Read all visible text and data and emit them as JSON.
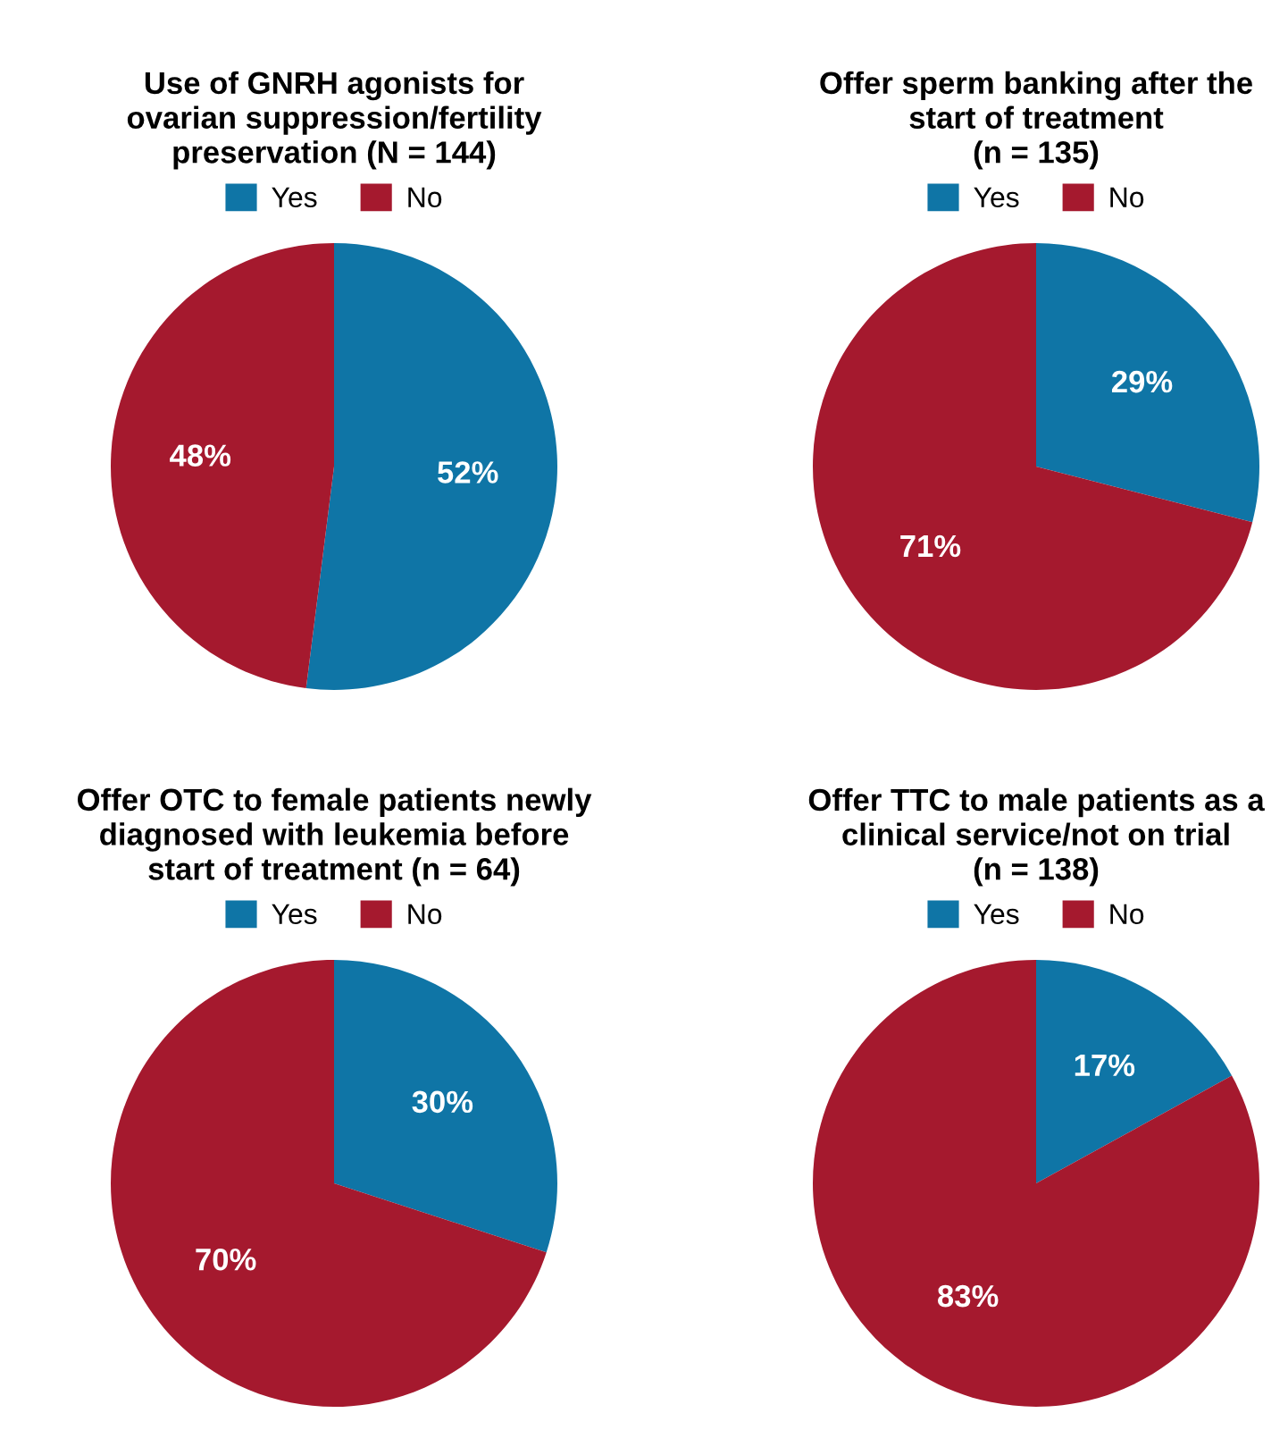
{
  "chart_data": [
    {
      "type": "pie",
      "title": "Use of GNRH agonists for\novarian suppression/fertility\npreservation (N = 144)",
      "categories": [
        "Yes",
        "No"
      ],
      "values": [
        52,
        48
      ],
      "colors": [
        "#0f75a6",
        "#a5192e"
      ],
      "value_labels": [
        "52%",
        "48%"
      ],
      "legend": "top"
    },
    {
      "type": "pie",
      "title": "Offer sperm banking after the\nstart of treatment\n(n = 135)",
      "categories": [
        "Yes",
        "No"
      ],
      "values": [
        29,
        71
      ],
      "colors": [
        "#0f75a6",
        "#a5192e"
      ],
      "value_labels": [
        "29%",
        "71%"
      ],
      "legend": "top"
    },
    {
      "type": "pie",
      "title": "Offer OTC to female patients newly\ndiagnosed with leukemia before\nstart of treatment (n = 64)",
      "categories": [
        "Yes",
        "No"
      ],
      "values": [
        30,
        70
      ],
      "colors": [
        "#0f75a6",
        "#a5192e"
      ],
      "value_labels": [
        "30%",
        "70%"
      ],
      "legend": "top"
    },
    {
      "type": "pie",
      "title": "Offer TTC to male patients as a\nclinical service/not on trial\n(n = 138)",
      "categories": [
        "Yes",
        "No"
      ],
      "values": [
        17,
        83
      ],
      "colors": [
        "#0f75a6",
        "#a5192e"
      ],
      "value_labels": [
        "17%",
        "83%"
      ],
      "legend": "top"
    }
  ]
}
